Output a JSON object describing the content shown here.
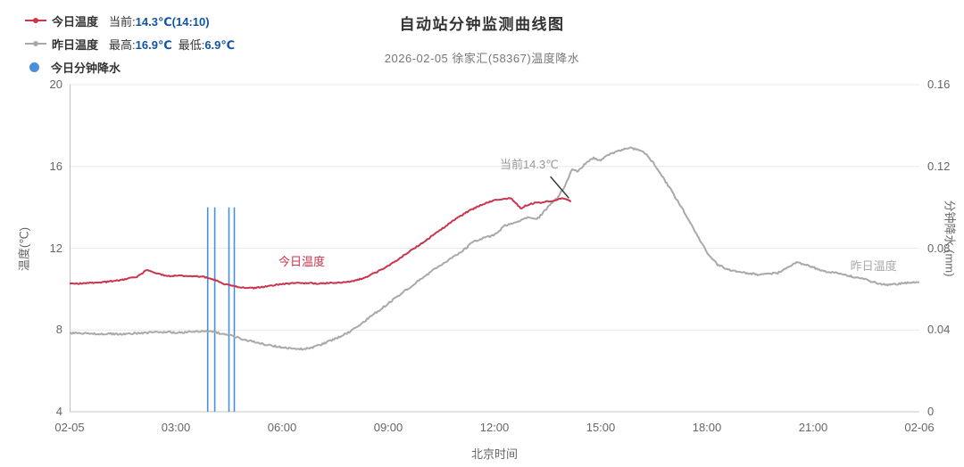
{
  "legend": {
    "current_label": "当前:",
    "current_value": "14.3℃(14:10)",
    "max_label": "最高:",
    "max_value": "16.9℃",
    "min_label": "最低:",
    "min_value": "6.9℃"
  },
  "chart_data": {
    "type": "line",
    "title": "自动站分钟监测曲线图",
    "subtitle": "2026-02-05 徐家汇(58367)温度降水",
    "x_axis": {
      "label": "北京时间",
      "range_hours": [
        0,
        24
      ],
      "ticks": [
        {
          "h": 0,
          "label": "02-05"
        },
        {
          "h": 3,
          "label": "03:00"
        },
        {
          "h": 6,
          "label": "06:00"
        },
        {
          "h": 9,
          "label": "09:00"
        },
        {
          "h": 12,
          "label": "12:00"
        },
        {
          "h": 15,
          "label": "15:00"
        },
        {
          "h": 18,
          "label": "18:00"
        },
        {
          "h": 21,
          "label": "21:00"
        },
        {
          "h": 24,
          "label": "02-06"
        }
      ]
    },
    "y_left": {
      "label": "温度(℃)",
      "min": 4,
      "max": 20,
      "ticks": [
        {
          "v": 4,
          "label": "4"
        },
        {
          "v": 8,
          "label": "8"
        },
        {
          "v": 12,
          "label": "12"
        },
        {
          "v": 16,
          "label": "16"
        },
        {
          "v": 20,
          "label": "20"
        }
      ]
    },
    "y_right": {
      "label": "分钟降水 (mm)",
      "min": 0,
      "max": 0.16,
      "ticks": [
        {
          "v": 0,
          "label": "0"
        },
        {
          "v": 0.04,
          "label": "0.04"
        },
        {
          "v": 0.08,
          "label": "0.08"
        },
        {
          "v": 0.12,
          "label": "0.12"
        },
        {
          "v": 0.16,
          "label": "0.16"
        }
      ]
    },
    "series": [
      {
        "name": "今日温度",
        "color": "#c8354c",
        "unit": "℃",
        "current": 14.3,
        "current_time": "14:10",
        "points": [
          [
            0,
            10.25
          ],
          [
            0.5,
            10.3
          ],
          [
            1,
            10.35
          ],
          [
            1.5,
            10.45
          ],
          [
            1.9,
            10.6
          ],
          [
            2.2,
            10.95
          ],
          [
            2.45,
            10.75
          ],
          [
            2.8,
            10.65
          ],
          [
            3.3,
            10.65
          ],
          [
            3.8,
            10.6
          ],
          [
            4.1,
            10.45
          ],
          [
            4.35,
            10.25
          ],
          [
            4.8,
            10.1
          ],
          [
            5.2,
            10.05
          ],
          [
            5.6,
            10.15
          ],
          [
            6,
            10.25
          ],
          [
            6.5,
            10.3
          ],
          [
            7,
            10.28
          ],
          [
            7.5,
            10.3
          ],
          [
            8,
            10.38
          ],
          [
            8.4,
            10.6
          ],
          [
            8.8,
            10.95
          ],
          [
            9.2,
            11.35
          ],
          [
            9.6,
            11.85
          ],
          [
            10,
            12.3
          ],
          [
            10.4,
            12.8
          ],
          [
            10.8,
            13.3
          ],
          [
            11.2,
            13.75
          ],
          [
            11.6,
            14.1
          ],
          [
            11.9,
            14.3
          ],
          [
            12.2,
            14.4
          ],
          [
            12.45,
            14.45
          ],
          [
            12.6,
            14.2
          ],
          [
            12.75,
            13.95
          ],
          [
            12.9,
            14.1
          ],
          [
            13.1,
            14.2
          ],
          [
            13.4,
            14.25
          ],
          [
            13.7,
            14.35
          ],
          [
            13.95,
            14.45
          ],
          [
            14.17,
            14.3
          ]
        ]
      },
      {
        "name": "昨日温度",
        "color": "#a9a9a9",
        "unit": "℃",
        "max": 16.9,
        "min": 6.9,
        "points": [
          [
            0,
            7.85
          ],
          [
            0.7,
            7.82
          ],
          [
            1.4,
            7.8
          ],
          [
            2,
            7.85
          ],
          [
            2.6,
            7.9
          ],
          [
            3.2,
            7.88
          ],
          [
            3.8,
            7.95
          ],
          [
            4.1,
            7.9
          ],
          [
            4.5,
            7.75
          ],
          [
            5,
            7.5
          ],
          [
            5.5,
            7.3
          ],
          [
            6,
            7.15
          ],
          [
            6.4,
            7.05
          ],
          [
            6.8,
            7.1
          ],
          [
            7.2,
            7.35
          ],
          [
            7.6,
            7.65
          ],
          [
            8,
            8.0
          ],
          [
            8.5,
            8.65
          ],
          [
            9,
            9.3
          ],
          [
            9.5,
            9.95
          ],
          [
            10,
            10.6
          ],
          [
            10.5,
            11.2
          ],
          [
            11,
            11.75
          ],
          [
            11.4,
            12.3
          ],
          [
            11.7,
            12.5
          ],
          [
            12,
            12.65
          ],
          [
            12.3,
            13.1
          ],
          [
            12.6,
            13.25
          ],
          [
            12.9,
            13.5
          ],
          [
            13.2,
            13.4
          ],
          [
            13.5,
            14.0
          ],
          [
            13.8,
            14.5
          ],
          [
            14,
            15.1
          ],
          [
            14.2,
            15.9
          ],
          [
            14.35,
            15.75
          ],
          [
            14.6,
            16.2
          ],
          [
            14.8,
            16.4
          ],
          [
            15,
            16.3
          ],
          [
            15.25,
            16.6
          ],
          [
            15.5,
            16.75
          ],
          [
            15.8,
            16.9
          ],
          [
            16.05,
            16.85
          ],
          [
            16.3,
            16.6
          ],
          [
            16.6,
            15.9
          ],
          [
            17,
            14.8
          ],
          [
            17.35,
            13.8
          ],
          [
            17.7,
            12.7
          ],
          [
            18,
            11.8
          ],
          [
            18.3,
            11.2
          ],
          [
            18.6,
            10.95
          ],
          [
            19,
            10.8
          ],
          [
            19.5,
            10.7
          ],
          [
            20,
            10.78
          ],
          [
            20.3,
            11.1
          ],
          [
            20.55,
            11.3
          ],
          [
            20.8,
            11.2
          ],
          [
            21.1,
            11.0
          ],
          [
            21.4,
            10.85
          ],
          [
            21.7,
            10.8
          ],
          [
            22,
            10.65
          ],
          [
            22.4,
            10.5
          ],
          [
            22.8,
            10.3
          ],
          [
            23.1,
            10.2
          ],
          [
            23.5,
            10.28
          ],
          [
            24,
            10.35
          ]
        ]
      }
    ],
    "precip_bars": {
      "name": "今日分钟降水",
      "color": "#4a8fdb",
      "unit": "mm",
      "bars": [
        [
          3.9,
          0.1
        ],
        [
          4.1,
          0.1
        ],
        [
          4.5,
          0.1
        ],
        [
          4.65,
          0.1
        ]
      ]
    },
    "annotations": [
      {
        "text": "当前14.3℃",
        "x_hour": 12.15,
        "y_temp": 16.15,
        "color": "#999999"
      },
      {
        "text": "今日温度",
        "x_hour": 5.9,
        "y_temp": 11.4,
        "color": "#c8354c"
      },
      {
        "text": "昨日温度",
        "x_hour": 22.05,
        "y_temp": 11.2,
        "color": "#a9a9a9"
      }
    ],
    "pointer_line": {
      "x1_hour": 13.58,
      "y1_temp": 15.5,
      "x2_hour": 14.1,
      "y2_temp": 14.45,
      "color": "#333333"
    },
    "grid": {
      "show": true,
      "color": "#e9e9e9",
      "axis_color": "#c4c4c4"
    }
  }
}
